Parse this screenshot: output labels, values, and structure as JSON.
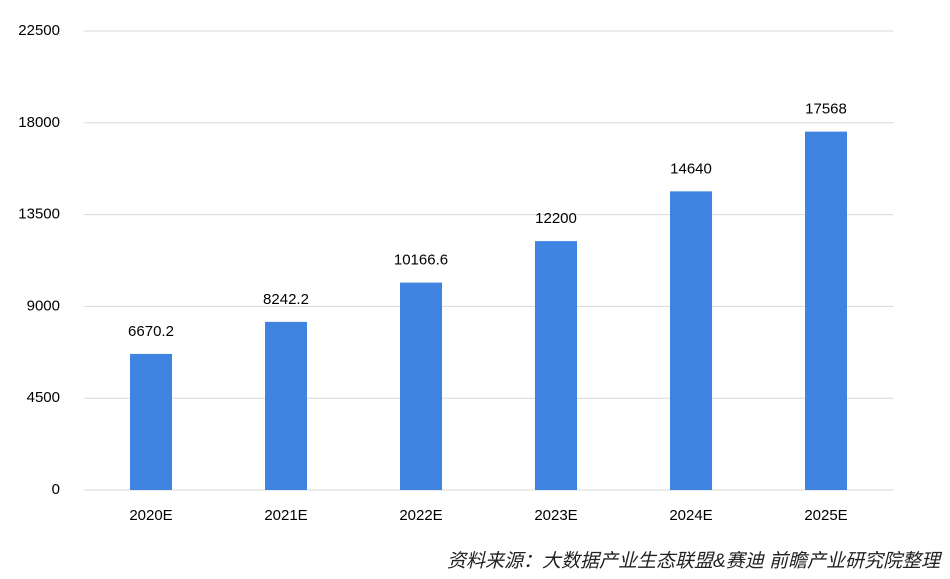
{
  "chart_data": {
    "type": "bar",
    "categories": [
      "2020E",
      "2021E",
      "2022E",
      "2023E",
      "2024E",
      "2025E"
    ],
    "values": [
      6670.2,
      8242.2,
      10166.6,
      12200,
      14640,
      17568
    ],
    "color": "#3f84e0",
    "ylim": [
      0,
      22500
    ],
    "yticks": [
      0,
      4500,
      9000,
      13500,
      18000,
      22500
    ],
    "grid": true,
    "source": "资料来源：大数据产业生态联盟&赛迪 前瞻产业研究院整理"
  }
}
